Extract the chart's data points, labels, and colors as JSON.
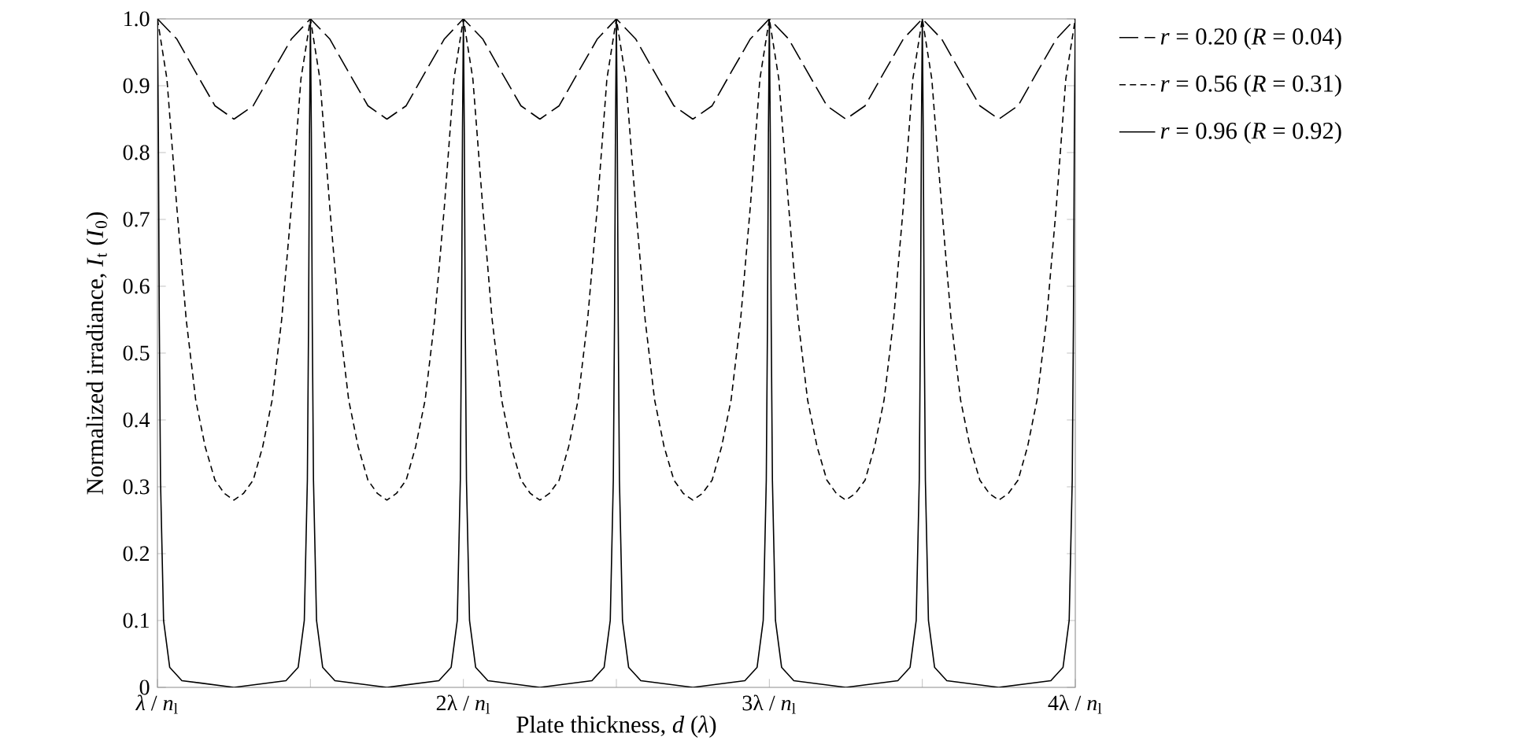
{
  "chart_data": {
    "type": "line",
    "xlabel": "Plate thickness, *d* (*λ*)",
    "ylabel": "Normalized irradiance, *I*$_{t}$ (*I*$_{0}$)",
    "xlim": [
      1,
      4
    ],
    "ylim": [
      0,
      1
    ],
    "xticks": [
      {
        "value": 1,
        "label": "*λ* / *n*$_{l}$"
      },
      {
        "value": 1.5,
        "label": null
      },
      {
        "value": 2,
        "label": "2λ / *n*$_{l}$"
      },
      {
        "value": 2.5,
        "label": null
      },
      {
        "value": 3,
        "label": "3λ / *n*$_{l}$"
      },
      {
        "value": 3.5,
        "label": null
      },
      {
        "value": 4,
        "label": "4λ / *n*$_{l}$"
      }
    ],
    "yticks": [
      0,
      0.1,
      0.2,
      0.3,
      0.4,
      0.5,
      0.6,
      0.7,
      0.8,
      0.9,
      {
        "value": 1,
        "label": "1.0"
      }
    ],
    "legend": "right",
    "marker": "none",
    "series": [
      {
        "name": "*r* = 0.20 (*R* = 0.04)",
        "color": "#000000",
        "line_style": "dashed",
        "x": [
          1,
          1.063,
          1.125,
          1.188,
          1.25,
          1.313,
          1.375,
          1.438,
          1.5,
          1.563,
          1.625,
          1.688,
          1.75,
          1.813,
          1.875,
          1.938,
          2,
          2.063,
          2.125,
          2.188,
          2.25,
          2.313,
          2.375,
          2.438,
          2.5,
          2.563,
          2.625,
          2.688,
          2.75,
          2.813,
          2.875,
          2.938,
          3,
          3.063,
          3.125,
          3.188,
          3.25,
          3.313,
          3.375,
          3.438,
          3.5,
          3.563,
          3.625,
          3.688,
          3.75,
          3.813,
          3.875,
          3.938,
          4
        ],
        "values": [
          1,
          0.97,
          0.92,
          0.87,
          0.85,
          0.87,
          0.92,
          0.97,
          1,
          0.97,
          0.92,
          0.87,
          0.85,
          0.87,
          0.92,
          0.97,
          1,
          0.97,
          0.92,
          0.87,
          0.85,
          0.87,
          0.92,
          0.97,
          1,
          0.97,
          0.92,
          0.87,
          0.85,
          0.87,
          0.92,
          0.97,
          1,
          0.97,
          0.92,
          0.87,
          0.85,
          0.87,
          0.92,
          0.97,
          1,
          0.97,
          0.92,
          0.87,
          0.85,
          0.87,
          0.92,
          0.97,
          1
        ]
      },
      {
        "name": "*r* = 0.56 (*R* = 0.31)",
        "color": "#000000",
        "line_style": "dashed",
        "x": [
          1,
          1.031,
          1.063,
          1.094,
          1.125,
          1.156,
          1.188,
          1.219,
          1.25,
          1.281,
          1.313,
          1.344,
          1.375,
          1.406,
          1.438,
          1.469,
          1.5,
          1.531,
          1.563,
          1.594,
          1.625,
          1.656,
          1.688,
          1.719,
          1.75,
          1.781,
          1.813,
          1.844,
          1.875,
          1.906,
          1.938,
          1.969,
          2,
          2.031,
          2.063,
          2.094,
          2.125,
          2.156,
          2.188,
          2.219,
          2.25,
          2.281,
          2.313,
          2.344,
          2.375,
          2.406,
          2.438,
          2.469,
          2.5,
          2.531,
          2.563,
          2.594,
          2.625,
          2.656,
          2.688,
          2.719,
          2.75,
          2.781,
          2.813,
          2.844,
          2.875,
          2.906,
          2.938,
          2.969,
          3,
          3.031,
          3.063,
          3.094,
          3.125,
          3.156,
          3.188,
          3.219,
          3.25,
          3.281,
          3.313,
          3.344,
          3.375,
          3.406,
          3.438,
          3.469,
          3.5,
          3.531,
          3.563,
          3.594,
          3.625,
          3.656,
          3.688,
          3.719,
          3.75,
          3.781,
          3.813,
          3.844,
          3.875,
          3.906,
          3.938,
          3.969,
          4
        ],
        "values": [
          1,
          0.91,
          0.72,
          0.55,
          0.43,
          0.36,
          0.31,
          0.29,
          0.28,
          0.29,
          0.31,
          0.36,
          0.43,
          0.55,
          0.72,
          0.91,
          1,
          0.91,
          0.72,
          0.55,
          0.43,
          0.36,
          0.31,
          0.29,
          0.28,
          0.29,
          0.31,
          0.36,
          0.43,
          0.55,
          0.72,
          0.91,
          1,
          0.91,
          0.72,
          0.55,
          0.43,
          0.36,
          0.31,
          0.29,
          0.28,
          0.29,
          0.31,
          0.36,
          0.43,
          0.55,
          0.72,
          0.91,
          1,
          0.91,
          0.72,
          0.55,
          0.43,
          0.36,
          0.31,
          0.29,
          0.28,
          0.29,
          0.31,
          0.36,
          0.43,
          0.55,
          0.72,
          0.91,
          1,
          0.91,
          0.72,
          0.55,
          0.43,
          0.36,
          0.31,
          0.29,
          0.28,
          0.29,
          0.31,
          0.36,
          0.43,
          0.55,
          0.72,
          0.91,
          1,
          0.91,
          0.72,
          0.55,
          0.43,
          0.36,
          0.31,
          0.29,
          0.28,
          0.29,
          0.31,
          0.36,
          0.43,
          0.55,
          0.72,
          0.91,
          1
        ]
      },
      {
        "name": "*r* = 0.96 (*R* = 0.92)",
        "color": "#000000",
        "line_style": "solid",
        "x": [
          1,
          1.003,
          1.006,
          1.01,
          1.02,
          1.04,
          1.08,
          1.25,
          1.42,
          1.46,
          1.48,
          1.49,
          1.494,
          1.497,
          1.5,
          1.503,
          1.506,
          1.51,
          1.52,
          1.54,
          1.58,
          1.75,
          1.92,
          1.96,
          1.98,
          1.99,
          1.994,
          1.997,
          2,
          2.003,
          2.006,
          2.01,
          2.02,
          2.04,
          2.08,
          2.25,
          2.42,
          2.46,
          2.48,
          2.49,
          2.494,
          2.497,
          2.5,
          2.503,
          2.506,
          2.51,
          2.52,
          2.54,
          2.58,
          2.75,
          2.92,
          2.96,
          2.98,
          2.99,
          2.994,
          2.997,
          3,
          3.003,
          3.006,
          3.01,
          3.02,
          3.04,
          3.08,
          3.25,
          3.42,
          3.46,
          3.48,
          3.49,
          3.494,
          3.497,
          3.5,
          3.503,
          3.506,
          3.51,
          3.52,
          3.54,
          3.58,
          3.75,
          3.92,
          3.96,
          3.98,
          3.99,
          3.994,
          3.997,
          4
        ],
        "values": [
          1,
          0.83,
          0.55,
          0.31,
          0.1,
          0.03,
          0.01,
          0,
          0.01,
          0.03,
          0.1,
          0.31,
          0.55,
          0.83,
          1,
          0.83,
          0.55,
          0.31,
          0.1,
          0.03,
          0.01,
          0,
          0.01,
          0.03,
          0.1,
          0.31,
          0.55,
          0.83,
          1,
          0.83,
          0.55,
          0.31,
          0.1,
          0.03,
          0.01,
          0,
          0.01,
          0.03,
          0.1,
          0.31,
          0.55,
          0.83,
          1,
          0.83,
          0.55,
          0.31,
          0.1,
          0.03,
          0.01,
          0,
          0.01,
          0.03,
          0.1,
          0.31,
          0.55,
          0.83,
          1,
          0.83,
          0.55,
          0.31,
          0.1,
          0.03,
          0.01,
          0,
          0.01,
          0.03,
          0.1,
          0.31,
          0.55,
          0.83,
          1,
          0.83,
          0.55,
          0.31,
          0.1,
          0.03,
          0.01,
          0,
          0.01,
          0.03,
          0.1,
          0.31,
          0.55,
          0.83,
          1
        ]
      }
    ]
  }
}
